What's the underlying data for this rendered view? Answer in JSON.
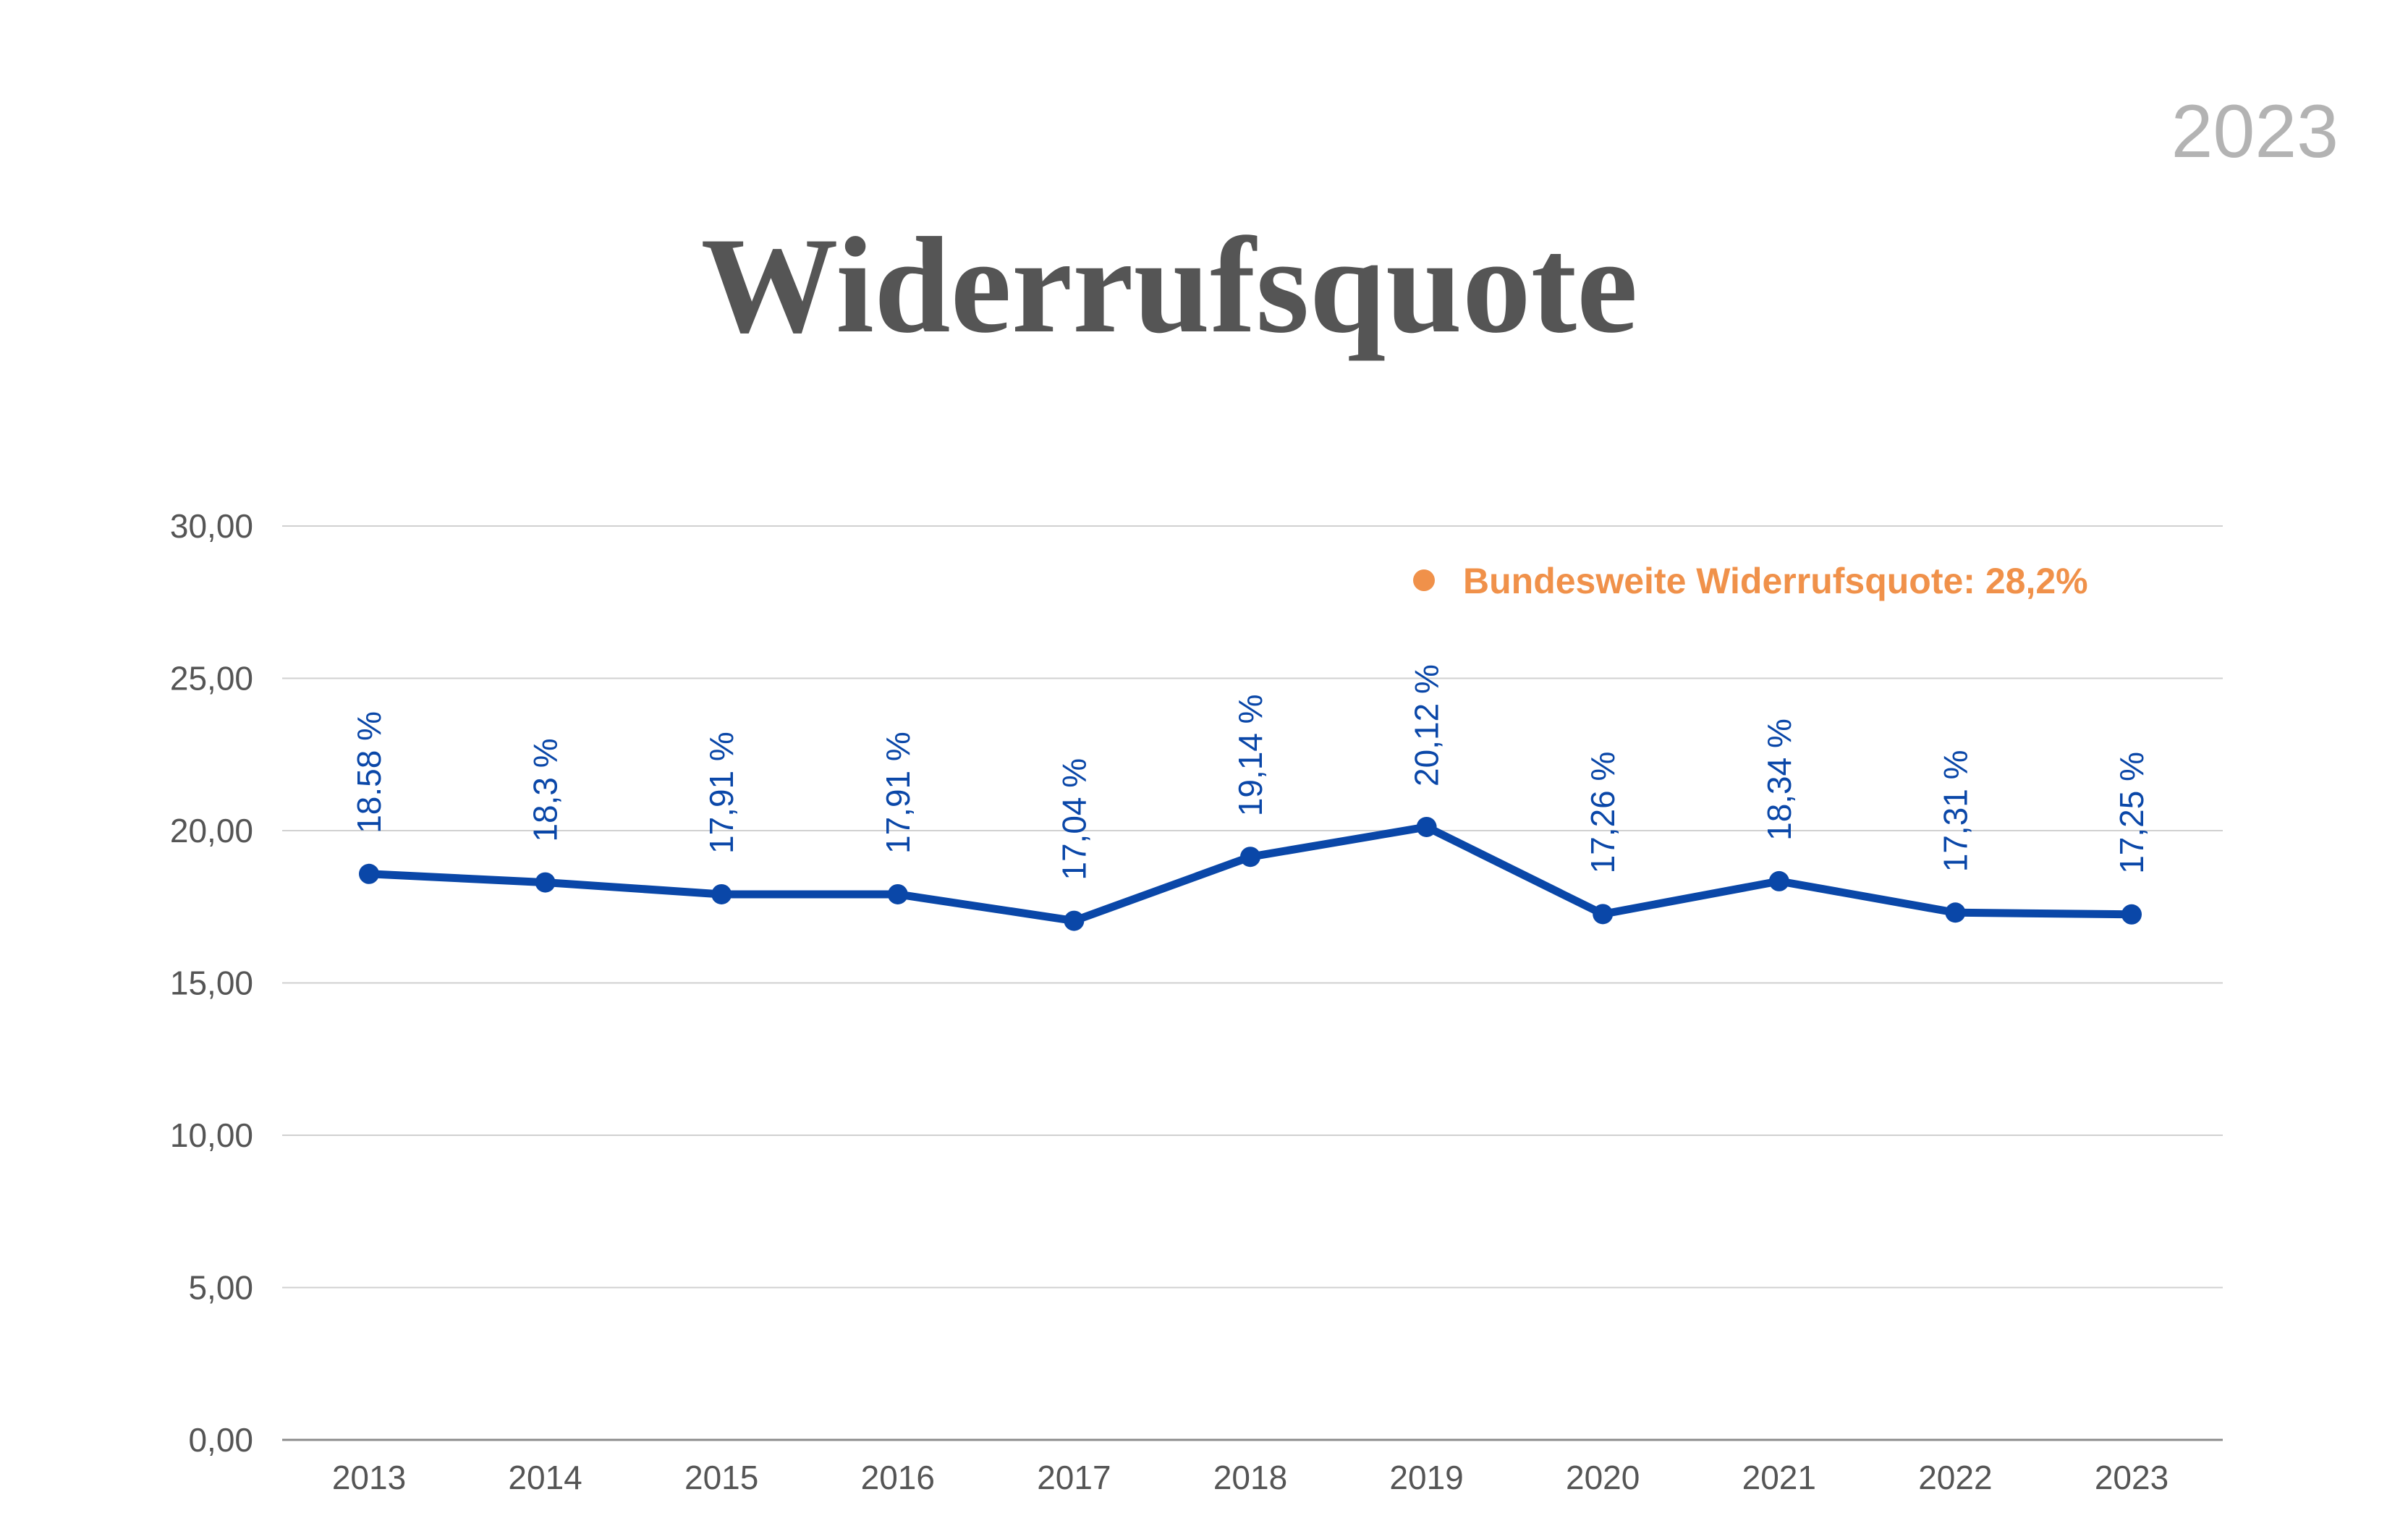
{
  "year_badge": "2023",
  "chart_data": {
    "type": "line",
    "title": "Widerrufsquote",
    "categories": [
      "2013",
      "2014",
      "2015",
      "2016",
      "2017",
      "2018",
      "2019",
      "2020",
      "2021",
      "2022",
      "2023"
    ],
    "series": [
      {
        "values": [
          18.58,
          18.3,
          17.91,
          17.91,
          17.04,
          19.14,
          20.12,
          17.26,
          18.34,
          17.31,
          17.25
        ],
        "data_labels": [
          "18.58 %",
          "18,3 %",
          "17,91 %",
          "17,91 %",
          "17,04 %",
          "19,14 %",
          "20,12 %",
          "17,26 %",
          "18,34 %",
          "17,31 %",
          "17,25 %"
        ],
        "color": "#0a47a8"
      }
    ],
    "ylim": [
      0,
      30
    ],
    "y_ticks": [
      "0,00",
      "5,00",
      "10,00",
      "15,00",
      "20,00",
      "25,00",
      "30,00"
    ],
    "grid": true,
    "annotation": {
      "text": "Bundesweite Widerrufsquote: 28,2%",
      "color": "#f0914a"
    }
  }
}
